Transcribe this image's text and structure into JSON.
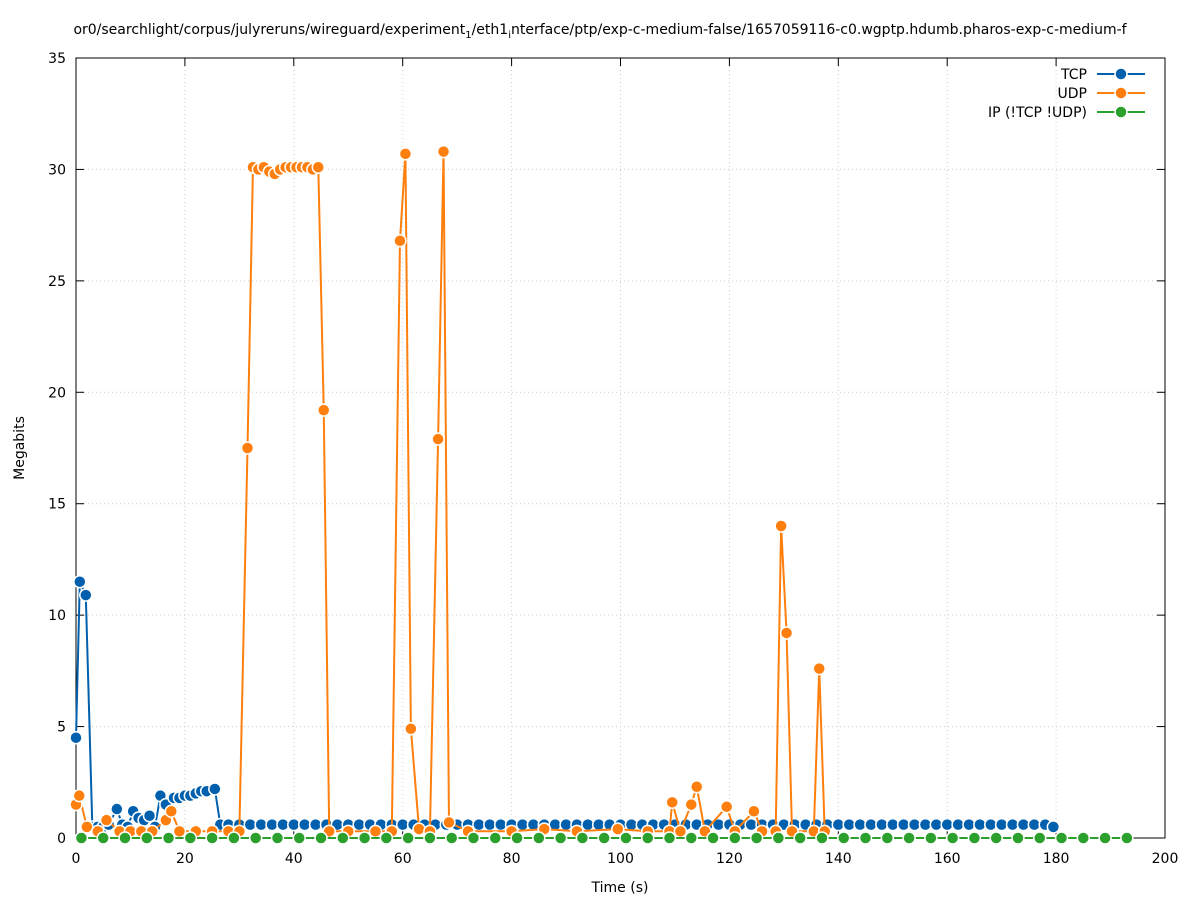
{
  "chart_data": {
    "type": "line",
    "title": [
      "or0/searchlight/corpus/julyreruns/wireguard/experiment",
      "1",
      "/eth1",
      "i",
      "nterface/ptp/exp-c-medium-false/1657059116-c0.wgptp.hdumb.pharos-exp-c-medium-f"
    ],
    "xlabel": "Time (s)",
    "ylabel": "Megabits",
    "xlim": [
      0,
      200
    ],
    "xticks": [
      0,
      20,
      40,
      60,
      80,
      100,
      120,
      140,
      160,
      180,
      200
    ],
    "ylim": [
      0,
      35
    ],
    "yticks": [
      0,
      5,
      10,
      15,
      20,
      25,
      30,
      35
    ],
    "grid": true,
    "legend": "top-right",
    "series": [
      {
        "name": "TCP",
        "color": "#0060ad",
        "x": [
          0,
          0.7,
          1.8,
          3,
          4,
          5,
          6,
          7.5,
          8.5,
          9.5,
          10.5,
          11.5,
          12.5,
          13.5,
          14.5,
          15.5,
          16.5,
          18,
          19,
          20,
          21,
          22,
          23,
          24,
          25.5,
          26.5,
          28,
          30,
          32,
          34,
          36,
          38,
          40,
          42,
          44,
          46,
          48,
          50,
          52,
          54,
          56,
          58,
          60,
          62,
          64,
          66,
          68,
          70,
          72,
          74,
          76,
          78,
          80,
          82,
          84,
          86,
          88,
          90,
          92,
          94,
          96,
          98,
          100,
          102,
          104,
          106,
          108,
          110,
          112,
          114,
          116,
          118,
          120,
          122,
          124,
          126,
          128,
          130,
          132,
          134,
          136,
          138,
          140,
          142,
          144,
          146,
          148,
          150,
          152,
          154,
          156,
          158,
          160,
          162,
          164,
          166,
          168,
          170,
          172,
          174,
          176,
          178,
          179.5
        ],
        "values": [
          4.5,
          11.5,
          10.9,
          0.5,
          0.5,
          0.5,
          0.6,
          1.3,
          0.6,
          0.5,
          1.2,
          0.9,
          0.8,
          1.0,
          0.5,
          1.9,
          1.5,
          1.8,
          1.8,
          1.9,
          1.9,
          2.0,
          2.1,
          2.1,
          2.2,
          0.6,
          0.6,
          0.6,
          0.6,
          0.6,
          0.6,
          0.6,
          0.6,
          0.6,
          0.6,
          0.6,
          0.6,
          0.6,
          0.6,
          0.6,
          0.6,
          0.6,
          0.6,
          0.6,
          0.6,
          0.6,
          0.6,
          0.6,
          0.6,
          0.6,
          0.6,
          0.6,
          0.6,
          0.6,
          0.6,
          0.6,
          0.6,
          0.6,
          0.6,
          0.6,
          0.6,
          0.6,
          0.6,
          0.6,
          0.6,
          0.6,
          0.6,
          0.6,
          0.6,
          0.6,
          0.6,
          0.6,
          0.6,
          0.6,
          0.6,
          0.6,
          0.6,
          0.6,
          0.6,
          0.6,
          0.6,
          0.6,
          0.6,
          0.6,
          0.6,
          0.6,
          0.6,
          0.6,
          0.6,
          0.6,
          0.6,
          0.6,
          0.6,
          0.6,
          0.6,
          0.6,
          0.6,
          0.6,
          0.6,
          0.6,
          0.6,
          0.6,
          0.5
        ]
      },
      {
        "name": "UDP",
        "color": "#ff7f0e",
        "x": [
          0,
          0.6,
          2,
          4,
          5.6,
          8,
          10,
          12,
          14,
          16.5,
          17.5,
          19,
          22,
          25,
          28,
          30,
          31.5,
          32.5,
          33.5,
          34.5,
          35.5,
          36.5,
          37.5,
          38.5,
          39.5,
          40.5,
          41.5,
          42.5,
          43.5,
          44.5,
          45.5,
          46.5,
          50,
          55,
          58,
          59.5,
          60.5,
          61.5,
          63,
          65,
          66.5,
          67.5,
          68.5,
          72,
          80,
          86,
          92,
          99.5,
          105,
          109,
          109.5,
          111,
          113,
          114,
          115.5,
          119.5,
          121,
          124.5,
          126,
          128.5,
          129.5,
          130.5,
          131.5,
          135.5,
          136.5,
          137.5
        ],
        "values": [
          1.5,
          1.9,
          0.5,
          0.3,
          0.8,
          0.3,
          0.3,
          0.3,
          0.3,
          0.8,
          1.2,
          0.3,
          0.3,
          0.3,
          0.3,
          0.3,
          17.5,
          30.1,
          30.0,
          30.1,
          29.9,
          29.8,
          30.0,
          30.1,
          30.1,
          30.1,
          30.1,
          30.1,
          30.0,
          30.1,
          19.2,
          0.3,
          0.3,
          0.3,
          0.3,
          26.8,
          30.7,
          4.9,
          0.4,
          0.3,
          17.9,
          30.8,
          0.7,
          0.3,
          0.3,
          0.4,
          0.3,
          0.4,
          0.3,
          0.3,
          1.6,
          0.3,
          1.5,
          2.3,
          0.3,
          1.4,
          0.3,
          1.2,
          0.3,
          0.3,
          14.0,
          9.2,
          0.3,
          0.3,
          7.6,
          0.3
        ]
      },
      {
        "name": "IP (!TCP  !UDP)",
        "color": "#2ca02c",
        "x": [
          1,
          5,
          9,
          13,
          17,
          21,
          25,
          29,
          33,
          37,
          41,
          45,
          49,
          53,
          57,
          61,
          65,
          69,
          73,
          77,
          81,
          85,
          89,
          93,
          97,
          101,
          105,
          109,
          113,
          117,
          121,
          125,
          129,
          133,
          137,
          141,
          145,
          149,
          153,
          157,
          161,
          165,
          169,
          173,
          177,
          181,
          185,
          189,
          193
        ],
        "values": [
          0,
          0,
          0,
          0,
          0,
          0,
          0,
          0,
          0,
          0,
          0,
          0,
          0,
          0,
          0,
          0,
          0,
          0,
          0,
          0,
          0,
          0,
          0,
          0,
          0,
          0,
          0,
          0,
          0,
          0,
          0,
          0,
          0,
          0,
          0,
          0,
          0,
          0,
          0,
          0,
          0,
          0,
          0,
          0,
          0,
          0,
          0,
          0,
          0
        ]
      }
    ]
  }
}
